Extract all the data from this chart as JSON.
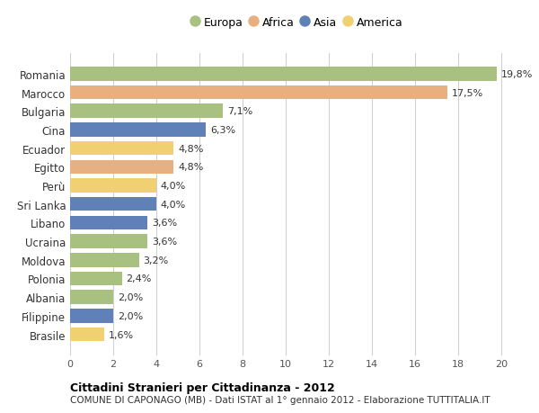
{
  "countries": [
    "Romania",
    "Marocco",
    "Bulgaria",
    "Cina",
    "Ecuador",
    "Egitto",
    "Perù",
    "Sri Lanka",
    "Libano",
    "Ucraina",
    "Moldova",
    "Polonia",
    "Albania",
    "Filippine",
    "Brasile"
  ],
  "values": [
    19.8,
    17.5,
    7.1,
    6.3,
    4.8,
    4.8,
    4.0,
    4.0,
    3.6,
    3.6,
    3.2,
    2.4,
    2.0,
    2.0,
    1.6
  ],
  "labels": [
    "19,8%",
    "17,5%",
    "7,1%",
    "6,3%",
    "4,8%",
    "4,8%",
    "4,0%",
    "4,0%",
    "3,6%",
    "3,6%",
    "3,2%",
    "2,4%",
    "2,0%",
    "2,0%",
    "1,6%"
  ],
  "continents": [
    "Europa",
    "Africa",
    "Europa",
    "Asia",
    "America",
    "Africa",
    "America",
    "Asia",
    "Asia",
    "Europa",
    "Europa",
    "Europa",
    "Europa",
    "Asia",
    "America"
  ],
  "colors": {
    "Europa": "#a8c080",
    "Africa": "#e8b080",
    "Asia": "#6080b8",
    "America": "#f0d070"
  },
  "xlim": [
    0,
    21
  ],
  "xticks": [
    0,
    2,
    4,
    6,
    8,
    10,
    12,
    14,
    16,
    18,
    20
  ],
  "title": "Cittadini Stranieri per Cittadinanza - 2012",
  "subtitle": "COMUNE DI CAPONAGO (MB) - Dati ISTAT al 1° gennaio 2012 - Elaborazione TUTTITALIA.IT",
  "background_color": "#ffffff",
  "grid_color": "#d0d0d0",
  "bar_height": 0.75
}
